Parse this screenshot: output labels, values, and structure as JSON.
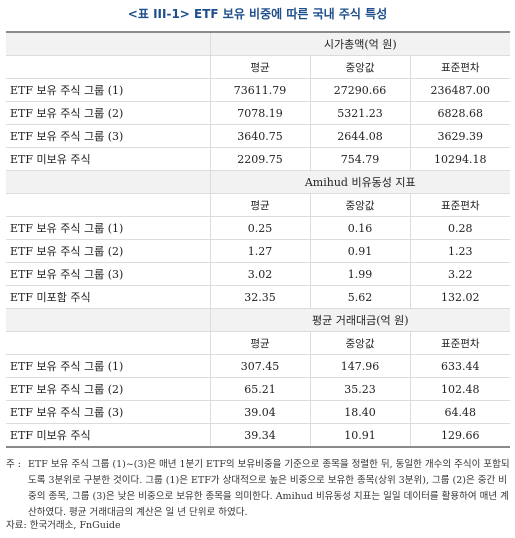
{
  "title": "<표 III-1> ETF 보유 비중에 따른 국내 주식 특성",
  "col_headers": [
    "평균",
    "중앙값",
    "표준편차"
  ],
  "sections": [
    {
      "header": "시가총액(억 원)",
      "rows": [
        {
          "label": "ETF 보유 주식 그룹 (1)",
          "values": [
            "73611.79",
            "27290.66",
            "236487.00"
          ]
        },
        {
          "label": "ETF 보유 주식 그룹 (2)",
          "values": [
            "7078.19",
            "5321.23",
            "6828.68"
          ]
        },
        {
          "label": "ETF 보유 주식 그룹 (3)",
          "values": [
            "3640.75",
            "2644.08",
            "3629.39"
          ]
        },
        {
          "label": "ETF 미보유 주식",
          "values": [
            "2209.75",
            "754.79",
            "10294.18"
          ]
        }
      ]
    },
    {
      "header": "Amihud 비유동성 지표",
      "rows": [
        {
          "label": "ETF 보유 주식 그룹 (1)",
          "values": [
            "0.25",
            "0.16",
            "0.28"
          ]
        },
        {
          "label": "ETF 보유 주식 그룹 (2)",
          "values": [
            "1.27",
            "0.91",
            "1.23"
          ]
        },
        {
          "label": "ETF 보유 주식 그룹 (3)",
          "values": [
            "3.02",
            "1.99",
            "3.22"
          ]
        },
        {
          "label": "ETF 미포함 주식",
          "values": [
            "32.35",
            "5.62",
            "132.02"
          ]
        }
      ]
    },
    {
      "header": "평균 거래대금(억 원)",
      "rows": [
        {
          "label": "ETF 보유 주식 그룹 (1)",
          "values": [
            "307.45",
            "147.96",
            "633.44"
          ]
        },
        {
          "label": "ETF 보유 주식 그룹 (2)",
          "values": [
            "65.21",
            "35.23",
            "102.48"
          ]
        },
        {
          "label": "ETF 보유 주식 그룹 (3)",
          "values": [
            "39.04",
            "18.40",
            "64.48"
          ]
        },
        {
          "label": "ETF 미보유 주식",
          "values": [
            "39.34",
            "10.91",
            "129.66"
          ]
        }
      ]
    }
  ],
  "note_mark": "주 :",
  "note_text": "ETF 보유 주식 그룹 (1)~(3)은 매년 1분기 ETF의 보유비중을 기준으로 종목을 정렬한 뒤, 동일한 개수의 주식이 포함되도록 3분위로 구분한 것이다. 그룹 (1)은 ETF가 상대적으로 높은 비중으로 보유한 종목(상위 3분위), 그룹 (2)은 중간 비중의 종목, 그룹 (3)은 낮은 비중으로 보유한 종목을 의미한다. Amihud 비유동성 지표는 일일 데이터를 활용하여 매년 계산하였다. 평균 거래대금의 계산은 일 년 단위로 하였다.",
  "source": "자료: 한국거래소, FnGuide"
}
